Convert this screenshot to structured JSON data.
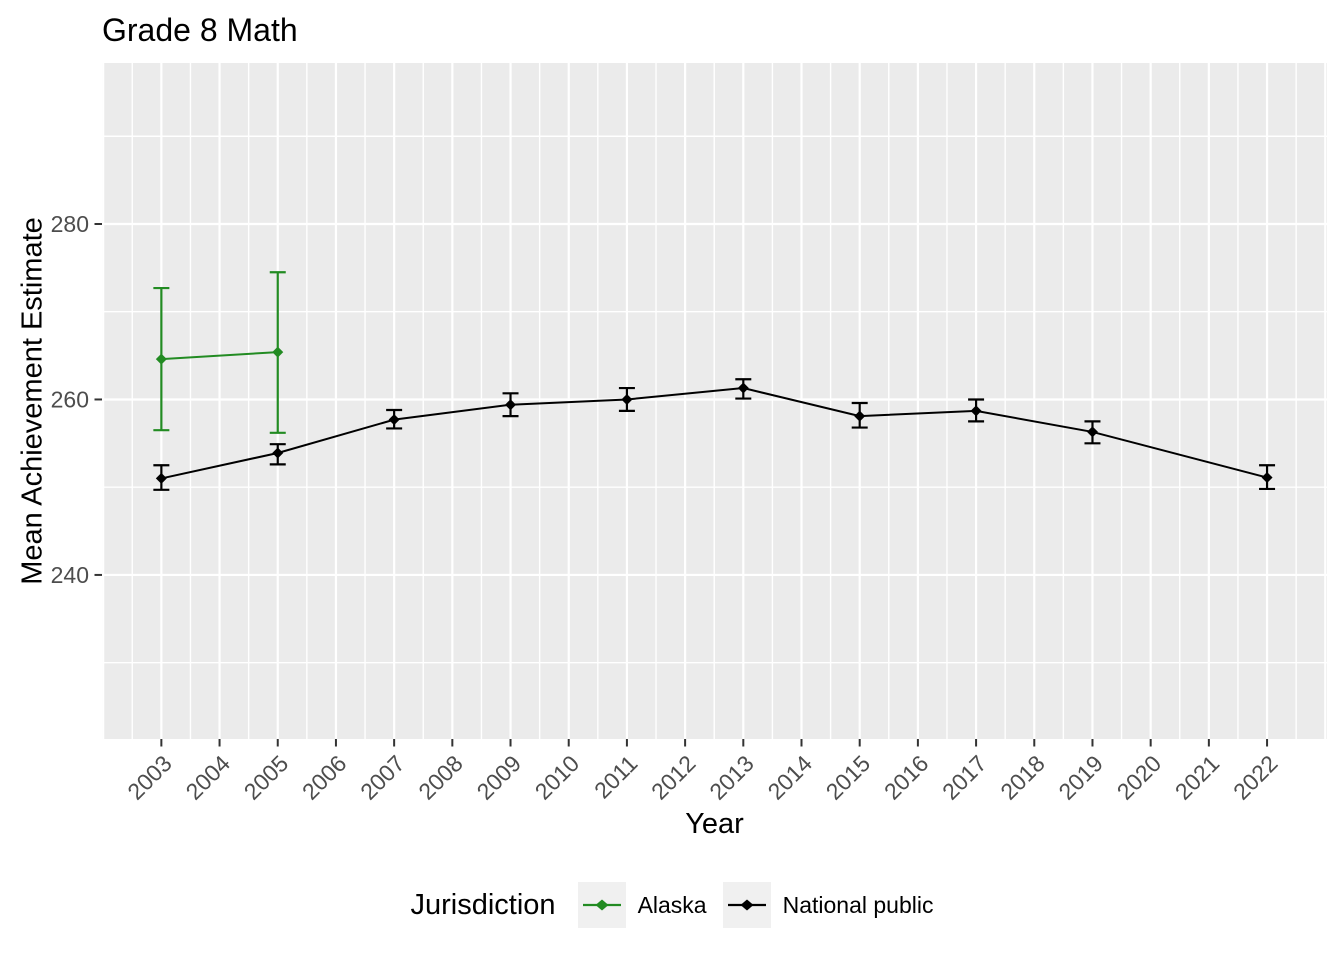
{
  "chart_data": {
    "type": "line",
    "title": "Grade 8 Math",
    "xlabel": "Year",
    "ylabel": "Mean Achievement Estimate",
    "legend": {
      "title": "Jurisdiction",
      "position": "bottom"
    },
    "axis": {
      "x_domain": [
        2001.98,
        2023.03
      ],
      "y_domain": [
        221.3,
        298.35
      ],
      "x_ticks": [
        2003,
        2004,
        2005,
        2006,
        2007,
        2008,
        2009,
        2010,
        2011,
        2012,
        2013,
        2014,
        2015,
        2016,
        2017,
        2018,
        2019,
        2020,
        2021,
        2022
      ],
      "y_ticks": [
        240,
        260,
        280
      ],
      "y_minor": [
        230,
        250,
        270,
        290
      ],
      "grid": true
    },
    "series": [
      {
        "name": "Alaska",
        "color": "#228B22",
        "points": [
          {
            "x": 2003,
            "y": 264.6,
            "lo": 256.5,
            "hi": 272.7
          },
          {
            "x": 2005,
            "y": 265.4,
            "lo": 256.2,
            "hi": 274.5
          }
        ]
      },
      {
        "name": "National public",
        "color": "#000000",
        "points": [
          {
            "x": 2003,
            "y": 251.0,
            "lo": 249.7,
            "hi": 252.5
          },
          {
            "x": 2005,
            "y": 253.9,
            "lo": 252.6,
            "hi": 254.9
          },
          {
            "x": 2007,
            "y": 257.7,
            "lo": 256.7,
            "hi": 258.8
          },
          {
            "x": 2009,
            "y": 259.4,
            "lo": 258.1,
            "hi": 260.7
          },
          {
            "x": 2011,
            "y": 260.0,
            "lo": 258.7,
            "hi": 261.3
          },
          {
            "x": 2013,
            "y": 261.3,
            "lo": 260.1,
            "hi": 262.3
          },
          {
            "x": 2015,
            "y": 258.1,
            "lo": 256.8,
            "hi": 259.6
          },
          {
            "x": 2017,
            "y": 258.7,
            "lo": 257.5,
            "hi": 260.0
          },
          {
            "x": 2019,
            "y": 256.3,
            "lo": 255.0,
            "hi": 257.5
          },
          {
            "x": 2022,
            "y": 251.1,
            "lo": 249.8,
            "hi": 252.5
          }
        ]
      }
    ],
    "style": {
      "panel_bg": "#EBEBEB",
      "grid_color": "#FFFFFF",
      "tick_label_color": "#4D4D4D",
      "axis_tick_color": "#333333",
      "legend_key_bg": "#F0F0F0"
    }
  }
}
